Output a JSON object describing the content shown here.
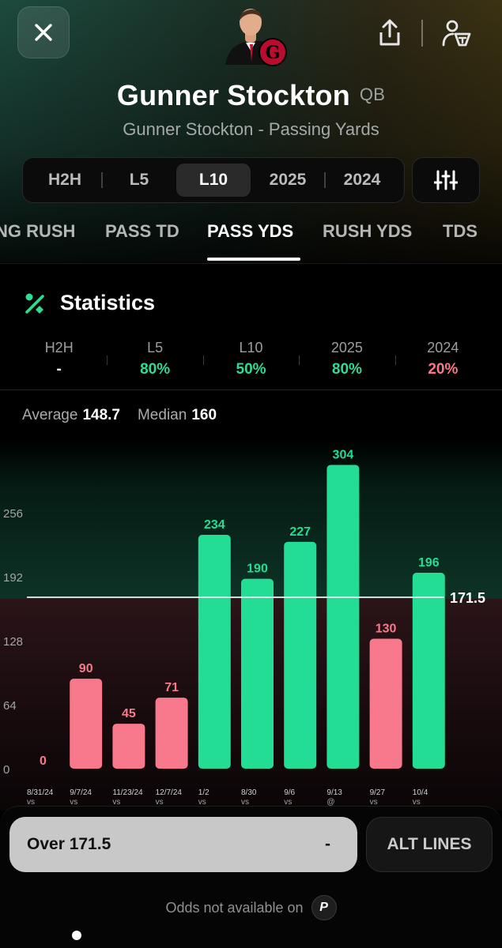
{
  "header": {
    "player_name": "Gunner Stockton",
    "position": "QB",
    "subtitle": "Gunner Stockton - Passing Yards",
    "team_logo_letter": "G",
    "accent_color": "#2fdc95"
  },
  "range_tabs": [
    {
      "label": "H2H",
      "active": false
    },
    {
      "label": "L5",
      "active": false
    },
    {
      "label": "L10",
      "active": true
    },
    {
      "label": "2025",
      "active": false
    },
    {
      "label": "2024",
      "active": false
    }
  ],
  "stat_tabs": [
    {
      "label": "NG RUSH",
      "active": false
    },
    {
      "label": "PASS TD",
      "active": false
    },
    {
      "label": "PASS YDS",
      "active": true
    },
    {
      "label": "RUSH YDS",
      "active": false
    },
    {
      "label": "TDS",
      "active": false
    }
  ],
  "statistics": {
    "title": "Statistics",
    "columns": [
      {
        "label": "H2H",
        "value": "-",
        "tone": "white"
      },
      {
        "label": "L5",
        "value": "80%",
        "tone": "green"
      },
      {
        "label": "L10",
        "value": "50%",
        "tone": "green"
      },
      {
        "label": "2025",
        "value": "80%",
        "tone": "green"
      },
      {
        "label": "2024",
        "value": "20%",
        "tone": "red"
      }
    ]
  },
  "summary": {
    "average_label": "Average",
    "average_value": "148.7",
    "median_label": "Median",
    "median_value": "160"
  },
  "chart_data": {
    "type": "bar",
    "categories": [
      "8/31/24",
      "9/7/24",
      "11/23/24",
      "12/7/24",
      "1/2",
      "8/30",
      "9/6",
      "9/13",
      "9/27",
      "10/4"
    ],
    "venue": [
      "vs",
      "vs",
      "vs",
      "vs",
      "vs",
      "vs",
      "vs",
      "@",
      "vs",
      "vs"
    ],
    "values": [
      0,
      90,
      45,
      71,
      234,
      190,
      227,
      304,
      130,
      196
    ],
    "y_ticks": [
      0,
      64,
      128,
      192,
      256
    ],
    "ylim": [
      0,
      330
    ],
    "line_value": 171.5,
    "line_label": "171.5",
    "over_color": "#22dd93",
    "under_color": "#f7798b",
    "grid": false
  },
  "bottom": {
    "over_label": "Over 171.5",
    "over_odds": "-",
    "alt_lines_label": "ALT LINES",
    "odds_note": "Odds not available on",
    "book_logo_letter": "P"
  }
}
